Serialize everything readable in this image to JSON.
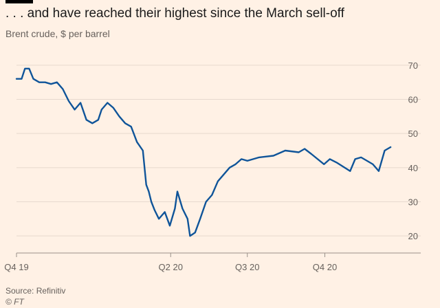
{
  "title": ". . . and have reached their highest since the March sell-off",
  "subtitle": "Brent crude, $ per barrel",
  "source": "Source: Refinitiv",
  "credit": "© FT",
  "colors": {
    "background": "#fff1e5",
    "line": "#0f5499",
    "grid": "#e6d9ce",
    "text": "#66605c"
  },
  "chart_data": {
    "type": "line",
    "title": ". . . and have reached their highest since the March sell-off",
    "ylabel": "Brent crude, $ per barrel",
    "xlabel": "",
    "ylim": [
      15,
      75
    ],
    "yticks": [
      20,
      30,
      40,
      50,
      60,
      70
    ],
    "xlim": [
      "2019-10-01",
      "2020-12-31"
    ],
    "xticks": [
      {
        "label": "Q4 19",
        "date": "2019-10-01"
      },
      {
        "label": "Q2 20",
        "date": "2020-04-01"
      },
      {
        "label": "Q3 20",
        "date": "2020-07-01"
      },
      {
        "label": "Q4 20",
        "date": "2020-10-01"
      }
    ],
    "grid": true,
    "y_axis_position": "right",
    "series": [
      {
        "x": [
          "2019-10-01",
          "2019-10-07",
          "2019-10-11",
          "2019-10-16",
          "2019-10-21",
          "2019-10-28",
          "2019-11-04",
          "2019-11-11",
          "2019-11-18",
          "2019-11-25",
          "2019-12-02",
          "2019-12-09",
          "2019-12-16",
          "2019-12-23",
          "2019-12-30",
          "2020-01-06",
          "2020-01-10",
          "2020-01-17",
          "2020-01-24",
          "2020-01-31",
          "2020-02-07",
          "2020-02-14",
          "2020-02-21",
          "2020-02-28",
          "2020-03-03",
          "2020-03-06",
          "2020-03-09",
          "2020-03-13",
          "2020-03-18",
          "2020-03-25",
          "2020-03-31",
          "2020-04-06",
          "2020-04-09",
          "2020-04-15",
          "2020-04-21",
          "2020-04-24",
          "2020-04-30",
          "2020-05-06",
          "2020-05-13",
          "2020-05-20",
          "2020-05-27",
          "2020-06-03",
          "2020-06-10",
          "2020-06-17",
          "2020-06-24",
          "2020-07-01",
          "2020-07-15",
          "2020-08-01",
          "2020-08-15",
          "2020-08-31",
          "2020-09-07",
          "2020-09-15",
          "2020-09-30",
          "2020-10-07",
          "2020-10-15",
          "2020-10-31",
          "2020-11-06",
          "2020-11-13",
          "2020-11-20",
          "2020-11-27",
          "2020-12-04",
          "2020-12-11",
          "2020-12-18"
        ],
        "values": [
          66,
          66,
          69,
          69,
          66,
          65,
          65,
          64.5,
          65,
          63,
          59.5,
          57,
          59,
          54,
          53,
          54,
          57,
          59,
          57.5,
          55,
          53,
          52,
          47.5,
          45,
          35,
          33,
          30,
          27.5,
          25,
          27,
          23,
          28,
          33,
          28,
          25,
          20,
          21,
          25,
          30,
          32,
          36,
          38,
          40,
          41,
          42.5,
          42,
          43,
          43.5,
          45,
          44.5,
          45.5,
          44,
          41,
          42.5,
          41.5,
          39,
          42.5,
          43,
          42,
          41,
          39,
          45,
          46
        ]
      }
    ]
  }
}
